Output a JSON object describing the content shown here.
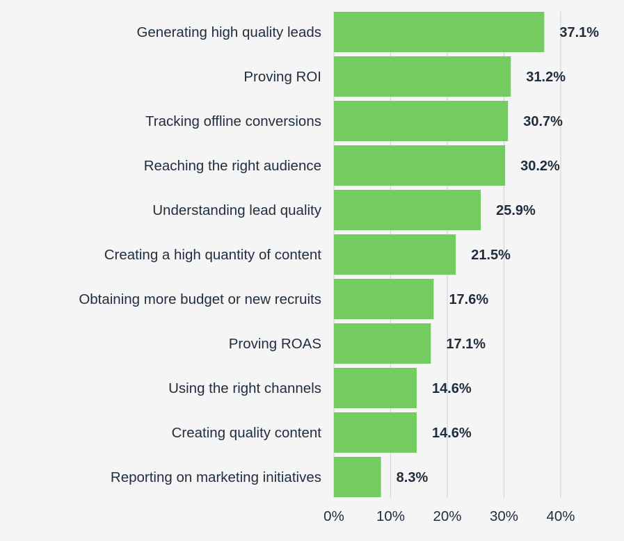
{
  "chart_data": {
    "type": "bar",
    "orientation": "horizontal",
    "title": "",
    "xlabel": "",
    "ylabel": "",
    "categories": [
      "Generating high quality leads",
      "Proving ROI",
      "Tracking offline conversions",
      "Reaching the right audience",
      "Understanding lead quality",
      "Creating a high quantity of content",
      "Obtaining more budget or new recruits",
      "Proving ROAS",
      "Using the right channels",
      "Creating quality content",
      "Reporting on marketing initiatives"
    ],
    "values": [
      37.1,
      31.2,
      30.7,
      30.2,
      25.9,
      21.5,
      17.6,
      17.1,
      14.6,
      14.6,
      8.3
    ],
    "value_labels": [
      "37.1%",
      "31.2%",
      "30.7%",
      "30.2%",
      "25.9%",
      "21.5%",
      "17.6%",
      "17.1%",
      "14.6%",
      "14.6%",
      "8.3%"
    ],
    "xlim": [
      0,
      40
    ],
    "x_ticks": [
      0,
      10,
      20,
      30,
      40
    ],
    "x_tick_labels": [
      "0%",
      "10%",
      "20%",
      "30%",
      "40%"
    ],
    "grid": true,
    "legend": "none",
    "colors": {
      "bar": "#74cb5f",
      "text": "#1f2d3d",
      "grid": "#d4d4d4",
      "background": "#f5f5f5"
    }
  }
}
